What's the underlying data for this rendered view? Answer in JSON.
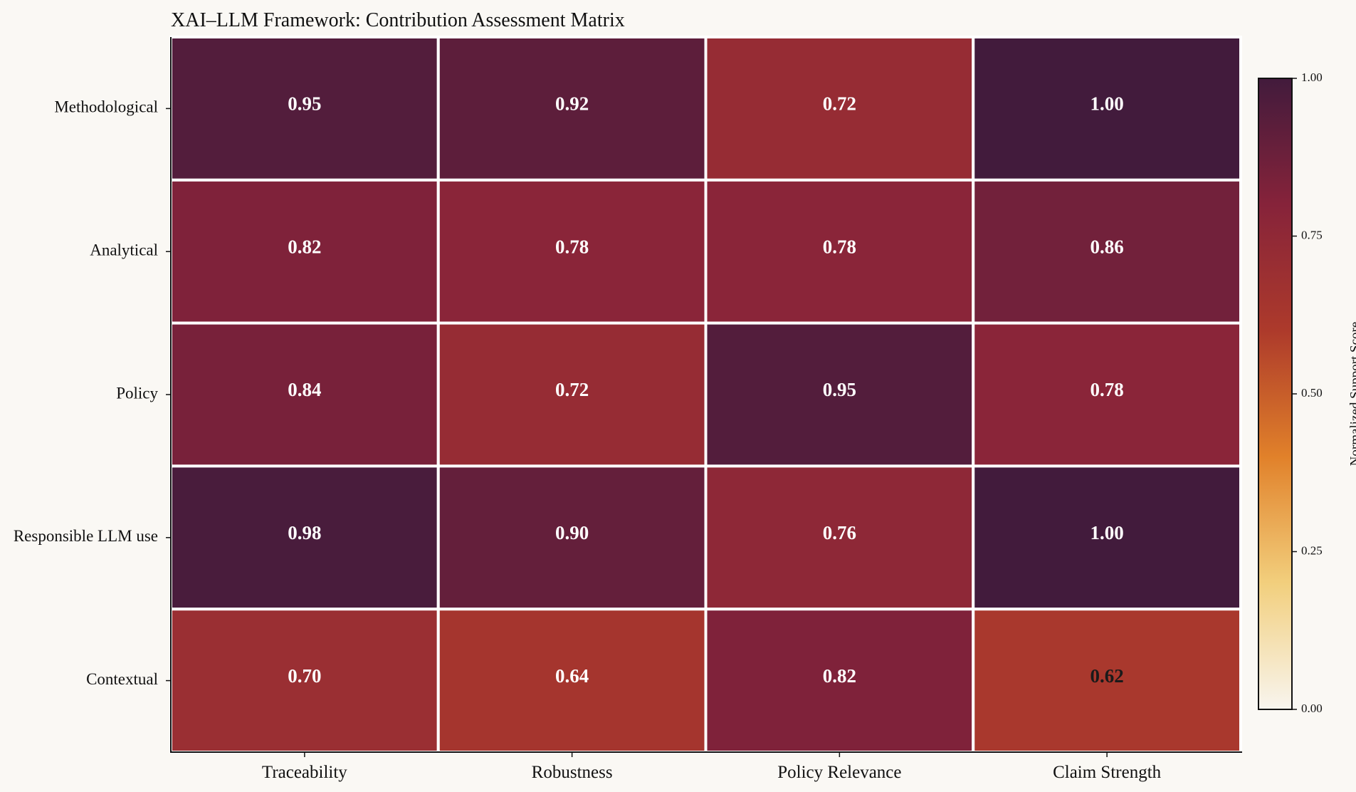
{
  "chart_data": {
    "type": "heatmap",
    "title": "XAI–LLM Framework: Contribution Assessment Matrix",
    "rows": [
      "Methodological",
      "Analytical",
      "Policy",
      "Responsible LLM use",
      "Contextual"
    ],
    "columns": [
      "Traceability",
      "Robustness",
      "Policy Relevance",
      "Claim Strength"
    ],
    "values": [
      [
        0.95,
        0.92,
        0.72,
        1.0
      ],
      [
        0.82,
        0.78,
        0.78,
        0.86
      ],
      [
        0.84,
        0.72,
        0.95,
        0.78
      ],
      [
        0.98,
        0.9,
        0.76,
        1.0
      ],
      [
        0.7,
        0.64,
        0.82,
        0.62
      ]
    ],
    "value_format": "0.00",
    "colorbar": {
      "label": "Normalized Support Score",
      "range": [
        0,
        1
      ],
      "ticks": [
        "0.00",
        "0.25",
        "0.50",
        "0.75",
        "1.00"
      ],
      "colormap": [
        "#f8f5ef",
        "#f2cf7d",
        "#e1812a",
        "#ad3a2b",
        "#86233a",
        "#421b3c"
      ]
    },
    "cell_border_color": "#ffffff",
    "dark_label_threshold": 0.63,
    "label_colors": {
      "light": "#ffffff",
      "dark": "#1a1a1a"
    }
  }
}
